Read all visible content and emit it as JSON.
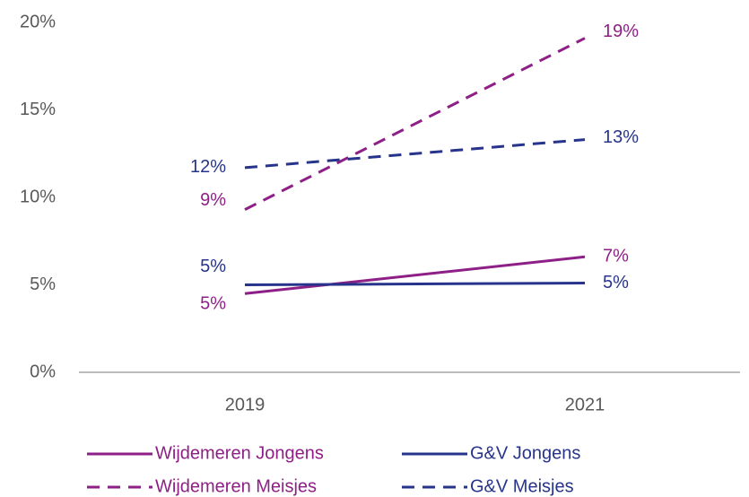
{
  "chart_data": {
    "type": "line",
    "categories": [
      "2019",
      "2021"
    ],
    "series": [
      {
        "name": "Wijdemeren Jongens",
        "color": "#8e1f87",
        "dash": false,
        "values": [
          4.5,
          6.6
        ],
        "value_labels": [
          "5%",
          "7%"
        ]
      },
      {
        "name": "G&V Jongens",
        "color": "#27348b",
        "dash": false,
        "values": [
          5.0,
          5.1
        ],
        "value_labels": [
          "5%",
          "5%"
        ]
      },
      {
        "name": "Wijdemeren Meisjes",
        "color": "#8e1f87",
        "dash": true,
        "values": [
          9.3,
          19.1
        ],
        "value_labels": [
          "9%",
          "19%"
        ]
      },
      {
        "name": "G&V Meisjes",
        "color": "#27348b",
        "dash": true,
        "values": [
          11.7,
          13.3
        ],
        "value_labels": [
          "12%",
          "13%"
        ]
      }
    ],
    "ylim": [
      0,
      20
    ],
    "yticks": [
      {
        "value": 0,
        "label": "0%"
      },
      {
        "value": 5,
        "label": "5%"
      },
      {
        "value": 10,
        "label": "10%"
      },
      {
        "value": 15,
        "label": "15%"
      },
      {
        "value": 20,
        "label": "20%"
      }
    ],
    "grid": false,
    "legend": "bottom"
  }
}
